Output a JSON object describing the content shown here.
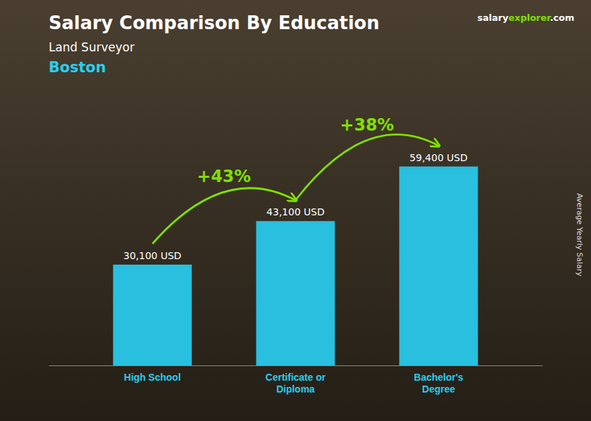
{
  "chart_data": {
    "type": "bar",
    "title": "Salary Comparison By Education",
    "subtitle": "Land Surveyor",
    "ylabel": "Average Yearly Salary",
    "annotations": [
      "Boston",
      "salary",
      "explorer",
      ".com",
      "+43%",
      "+38%"
    ],
    "categories": [
      "High School",
      "Certificate or\nDiploma",
      "Bachelor's\nDegree"
    ],
    "values": [
      30100,
      43100,
      59400
    ],
    "value_labels": [
      "30,100 USD",
      "43,100 USD",
      "59,400 USD"
    ],
    "data_labels": true,
    "color": "#29BFDF",
    "ylim": [
      0,
      78000
    ],
    "tick_labels": "x",
    "grid": false
  }
}
